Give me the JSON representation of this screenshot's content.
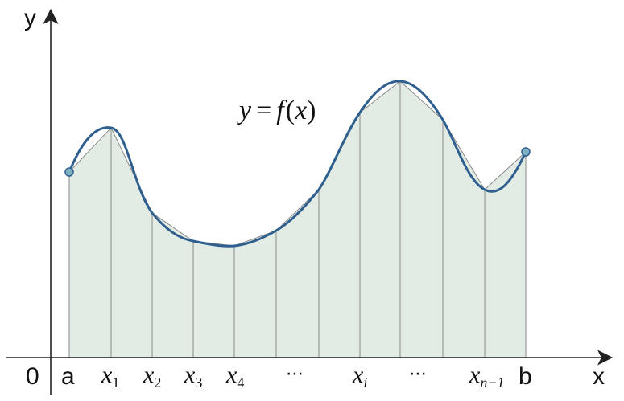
{
  "labels": {
    "origin": "0",
    "x_axis": "x",
    "y_axis": "y",
    "a": "a",
    "b": "b",
    "x1": "x",
    "x1_sub": "1",
    "x2": "x",
    "x2_sub": "2",
    "x3": "x",
    "x3_sub": "3",
    "x4": "x",
    "x4_sub": "4",
    "xi": "x",
    "xi_sub": "i",
    "xn1": "x",
    "xn1_sub": "n−1",
    "ellipsis": "⋯",
    "function_y": "y",
    "function_eq": "=",
    "function_f": "f",
    "function_lp": "(",
    "function_x": "x",
    "function_rp": ")"
  },
  "colors": {
    "curve": "#2f5f8f",
    "fill": "#e3ece4",
    "endpoint": "#7fb0c4"
  }
}
